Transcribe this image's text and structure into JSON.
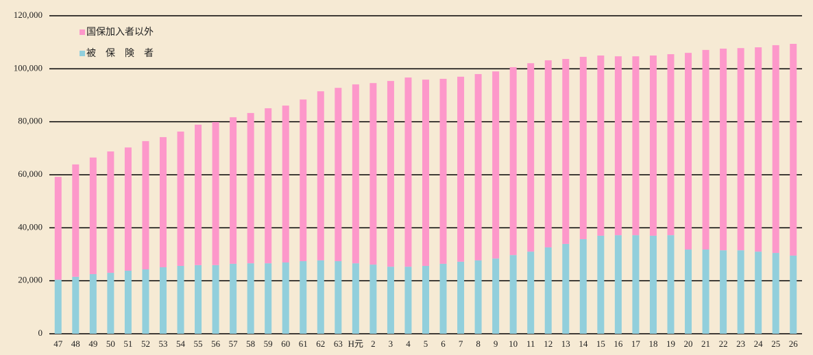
{
  "chart_data": {
    "type": "stacked-bar",
    "categories": [
      "47",
      "48",
      "49",
      "50",
      "51",
      "52",
      "53",
      "54",
      "55",
      "56",
      "57",
      "58",
      "59",
      "60",
      "61",
      "62",
      "63",
      "H元",
      "2",
      "3",
      "4",
      "5",
      "6",
      "7",
      "8",
      "9",
      "10",
      "11",
      "12",
      "13",
      "14",
      "15",
      "16",
      "17",
      "18",
      "19",
      "20",
      "21",
      "22",
      "23",
      "24",
      "25",
      "26"
    ],
    "series": [
      {
        "name": "被　保　険　者",
        "color": "#92cfdc",
        "values": [
          20400,
          21500,
          22500,
          23000,
          23800,
          24300,
          25100,
          25600,
          25900,
          25900,
          26400,
          26600,
          26600,
          26900,
          27400,
          27700,
          27400,
          26600,
          26100,
          25300,
          25300,
          25600,
          26400,
          27200,
          27700,
          28400,
          29700,
          31000,
          32600,
          33900,
          35700,
          37000,
          37200,
          37200,
          37000,
          37200,
          31800,
          31800,
          31500,
          31500,
          31000,
          30500,
          29500
        ]
      },
      {
        "name": "国保加入者以外",
        "color": "#fd98ca",
        "values": [
          38800,
          42400,
          44000,
          45800,
          46500,
          48400,
          49100,
          50700,
          53000,
          54000,
          55300,
          56700,
          58500,
          59200,
          61000,
          63800,
          65400,
          67500,
          68500,
          70100,
          71400,
          70300,
          69800,
          69800,
          70300,
          70600,
          70900,
          71100,
          70600,
          69800,
          68800,
          68000,
          67500,
          67500,
          68000,
          68300,
          74200,
          75300,
          76100,
          76300,
          77100,
          78400,
          79900
        ]
      }
    ],
    "ylim": [
      0,
      120000
    ],
    "yticks": [
      0,
      {
        "value": 20000,
        "label": "20,000"
      },
      {
        "value": 40000,
        "label": "40,000"
      },
      {
        "value": 60000,
        "label": "60,000"
      },
      {
        "value": 80000,
        "label": "80,000"
      },
      {
        "value": 100000,
        "label": "100,000"
      },
      {
        "value": 120000,
        "label": "120,000"
      }
    ],
    "grid": true,
    "legend": "top-left"
  }
}
